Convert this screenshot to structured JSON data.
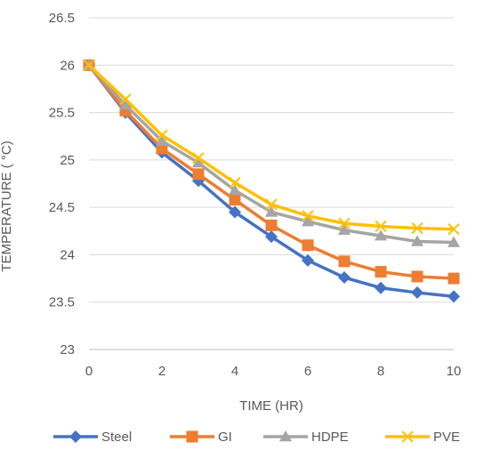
{
  "chart_data": {
    "type": "line",
    "title": "",
    "xlabel": "TIME (HR)",
    "ylabel": "TEMPERATURE ( °C)",
    "x": [
      0,
      1,
      2,
      3,
      4,
      5,
      6,
      7,
      8,
      9,
      10
    ],
    "xlim": [
      0,
      10
    ],
    "ylim": [
      23,
      26.5
    ],
    "x_ticks": [
      "0",
      "2",
      "4",
      "6",
      "8",
      "10"
    ],
    "y_ticks": [
      "23",
      "23.5",
      "24",
      "24.5",
      "25",
      "25.5",
      "26",
      "26.5"
    ],
    "grid": "horizontal",
    "legend_position": "bottom",
    "series": [
      {
        "name": "Steel",
        "color": "#4472C4",
        "marker": "diamond",
        "values": [
          26.0,
          25.5,
          25.08,
          24.78,
          24.45,
          24.19,
          23.94,
          23.76,
          23.65,
          23.6,
          23.56
        ]
      },
      {
        "name": "GI",
        "color": "#ED7D31",
        "marker": "square",
        "values": [
          26.0,
          25.52,
          25.12,
          24.85,
          24.58,
          24.31,
          24.1,
          23.93,
          23.82,
          23.77,
          23.75
        ]
      },
      {
        "name": "HDPE",
        "color": "#A5A5A5",
        "marker": "triangle",
        "values": [
          26.0,
          25.58,
          25.2,
          24.97,
          24.68,
          24.45,
          24.35,
          24.26,
          24.2,
          24.14,
          24.13
        ]
      },
      {
        "name": "PVE",
        "color": "#FFC000",
        "marker": "x",
        "values": [
          26.0,
          25.64,
          25.26,
          25.02,
          24.76,
          24.53,
          24.41,
          24.33,
          24.3,
          24.28,
          24.27
        ]
      }
    ]
  }
}
